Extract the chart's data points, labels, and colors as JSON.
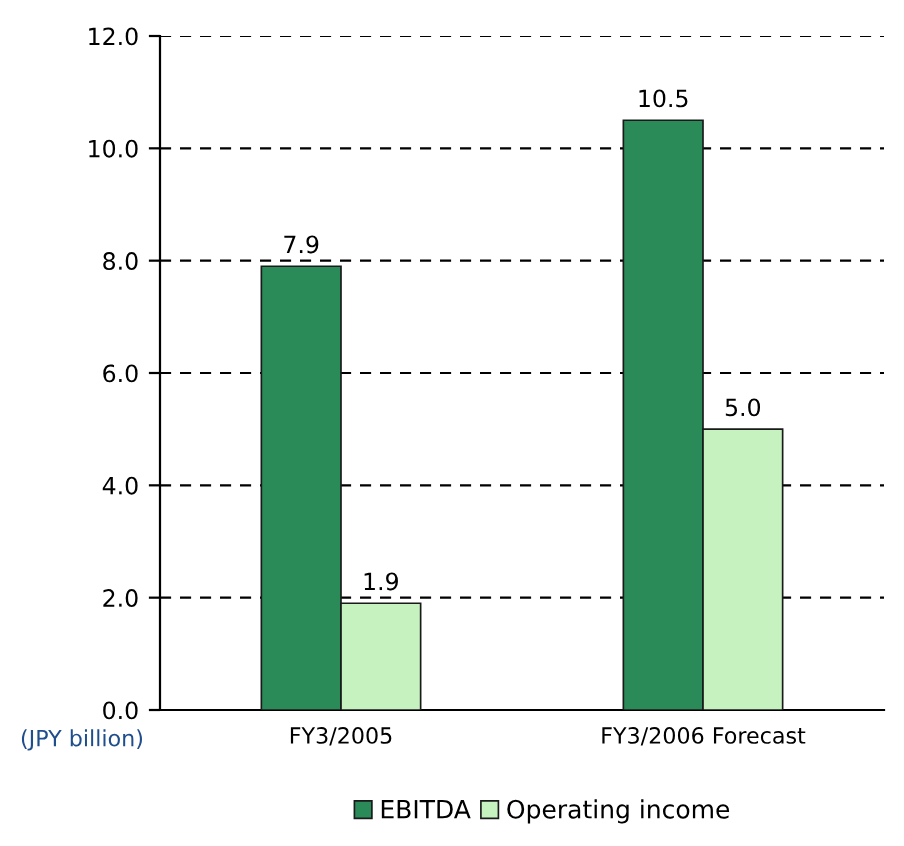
{
  "chart_data": {
    "type": "bar",
    "categories": [
      "FY3/2005",
      "FY3/2006 Forecast"
    ],
    "series": [
      {
        "name": "EBITDA",
        "color": "#2a8a58",
        "values": [
          7.9,
          10.5
        ],
        "value_labels": [
          "7.9",
          "10.5"
        ]
      },
      {
        "name": "Operating income",
        "color": "#c6f2c0",
        "values": [
          1.9,
          5.0
        ],
        "value_labels": [
          "1.9",
          "5.0"
        ]
      }
    ],
    "ylim": [
      0,
      12
    ],
    "yticks": [
      {
        "value": 0,
        "label": "0.0"
      },
      {
        "value": 2,
        "label": "2.0"
      },
      {
        "value": 4,
        "label": "4.0"
      },
      {
        "value": 6,
        "label": "6.0"
      },
      {
        "value": 8,
        "label": "8.0"
      },
      {
        "value": 10,
        "label": "10.0"
      },
      {
        "value": 12,
        "label": "12.0"
      }
    ],
    "grid": "y",
    "legend": "bottom",
    "annotations": [
      "(JPY billion)"
    ]
  }
}
